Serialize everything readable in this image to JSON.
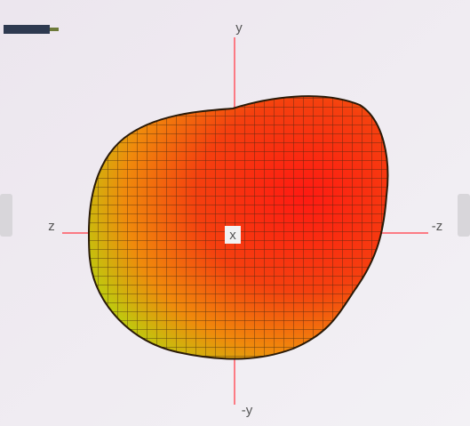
{
  "axes": {
    "y": "y",
    "neg_y": "-y",
    "z": "z",
    "neg_z": "-z",
    "x": "x"
  }
}
